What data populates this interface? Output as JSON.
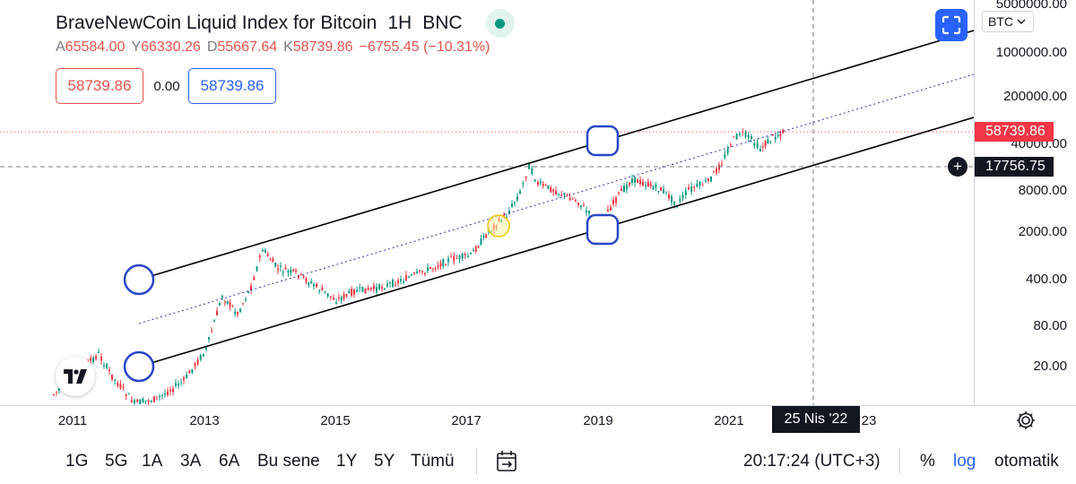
{
  "header": {
    "symbol": "BraveNewCoin Liquid Index for Bitcoin",
    "interval": "1H",
    "exchange": "BNC"
  },
  "ohlc": {
    "open_label": "A",
    "open": "65584.00",
    "high_label": "Y",
    "high": "66330.26",
    "low_label": "D",
    "low": "55667.64",
    "close_label": "K",
    "close": "58739.86",
    "change": "−6755.45 (−10.31%)"
  },
  "order_boxes": {
    "sell": "58739.86",
    "spread": "0.00",
    "buy": "58739.86"
  },
  "price_axis": {
    "currency": "BTC",
    "ticks": [
      "5000000.00",
      "1000000.00",
      "200000.00",
      "40000.00",
      "8000.00",
      "2000.00",
      "400.00",
      "80.00",
      "20.00"
    ],
    "last_price_tag": "58739.86",
    "crosshair_price_tag": "17756.75"
  },
  "time_axis": {
    "ticks": [
      "2011",
      "2013",
      "2015",
      "2017",
      "2019",
      "2021",
      "23"
    ],
    "crosshair_date": "25 Nis '22"
  },
  "bottom_bar": {
    "timeframes": [
      "1G",
      "5G",
      "1A",
      "3A",
      "6A",
      "Bu sene",
      "1Y",
      "5Y",
      "Tümü"
    ],
    "clock": "20:17:24 (UTC+3)",
    "percent": "%",
    "log": "log",
    "auto": "otomatik"
  },
  "colors": {
    "up": "#089981",
    "down": "#f23645",
    "accent": "#2962ff",
    "trend_line": "#000000",
    "midline": "#3c2bb0",
    "last_price_line": "#f23645"
  },
  "icons": [
    "fullscreen-icon",
    "tradingview-logo-icon",
    "plus-circle-icon",
    "gear-icon",
    "date-range-icon",
    "chevron-down-icon"
  ]
}
